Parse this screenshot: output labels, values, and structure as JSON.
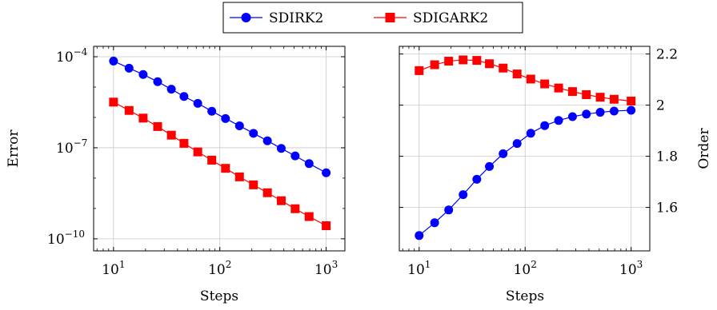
{
  "legend": {
    "entries": [
      {
        "name": "SDIRK2",
        "color": "#0000ff",
        "marker": "circle"
      },
      {
        "name": "SDIGARK2",
        "color": "#ff0000",
        "marker": "square"
      }
    ]
  },
  "chart_data": [
    {
      "type": "line",
      "title": "",
      "xlabel": "Steps",
      "ylabel": "Error",
      "xscale": "log",
      "yscale": "log",
      "xlim": [
        6.5,
        1500
      ],
      "ylim": [
        4e-11,
        0.00022
      ],
      "xticks": [
        {
          "value": 10,
          "base": "10",
          "exp": "1"
        },
        {
          "value": 100,
          "base": "10",
          "exp": "2"
        },
        {
          "value": 1000,
          "base": "10",
          "exp": "3"
        }
      ],
      "yticks": [
        {
          "value": 0.0001,
          "base": "10",
          "exp": "−4"
        },
        {
          "value": 1e-07,
          "base": "10",
          "exp": "−7"
        },
        {
          "value": 1e-10,
          "base": "10",
          "exp": "−10"
        }
      ],
      "grid": true,
      "x": [
        10,
        14,
        19,
        26,
        35,
        46,
        62,
        84,
        113,
        153,
        207,
        280,
        378,
        511,
        691,
        1000
      ],
      "series": [
        {
          "name": "SDIRK2",
          "color": "#0000ff",
          "marker": "circle",
          "values": [
            7.2e-05,
            4.2e-05,
            2.6e-05,
            1.5e-05,
            8.5e-06,
            4.9e-06,
            2.9e-06,
            1.6e-06,
            9.2e-07,
            5.3e-07,
            3e-07,
            1.7e-07,
            9.5e-08,
            5.4e-08,
            3e-08,
            1.5e-08
          ]
        },
        {
          "name": "SDIGARK2",
          "color": "#ff0000",
          "marker": "square",
          "values": [
            3.2e-06,
            1.7e-06,
            9.5e-07,
            5e-07,
            2.6e-07,
            1.4e-07,
            7.3e-08,
            3.9e-08,
            2.1e-08,
            1.1e-08,
            6e-09,
            3.3e-09,
            1.8e-09,
            9.8e-10,
            5.4e-10,
            2.7e-10
          ]
        }
      ]
    },
    {
      "type": "line",
      "title": "",
      "xlabel": "Steps",
      "ylabel": "Order",
      "ylabel_position": "right",
      "xscale": "log",
      "yscale": "linear",
      "xlim": [
        6.5,
        1500
      ],
      "ylim": [
        1.43,
        2.23
      ],
      "xticks": [
        {
          "value": 10,
          "base": "10",
          "exp": "1"
        },
        {
          "value": 100,
          "base": "10",
          "exp": "2"
        },
        {
          "value": 1000,
          "base": "10",
          "exp": "3"
        }
      ],
      "yticks": [
        {
          "value": 1.6,
          "label": "1.6"
        },
        {
          "value": 1.8,
          "label": "1.8"
        },
        {
          "value": 2.0,
          "label": "2"
        },
        {
          "value": 2.2,
          "label": "2.2"
        }
      ],
      "grid": true,
      "x": [
        10,
        14,
        19,
        26,
        35,
        46,
        62,
        84,
        113,
        153,
        207,
        280,
        378,
        511,
        691,
        1000
      ],
      "series": [
        {
          "name": "SDIRK2",
          "color": "#0000ff",
          "marker": "circle",
          "values": [
            1.49,
            1.54,
            1.59,
            1.65,
            1.71,
            1.76,
            1.81,
            1.85,
            1.89,
            1.92,
            1.94,
            1.955,
            1.965,
            1.972,
            1.977,
            1.98
          ]
        },
        {
          "name": "SDIGARK2",
          "color": "#ff0000",
          "marker": "square",
          "values": [
            2.135,
            2.158,
            2.172,
            2.177,
            2.175,
            2.162,
            2.145,
            2.122,
            2.102,
            2.083,
            2.067,
            2.053,
            2.041,
            2.031,
            2.023,
            2.016
          ]
        }
      ]
    }
  ]
}
